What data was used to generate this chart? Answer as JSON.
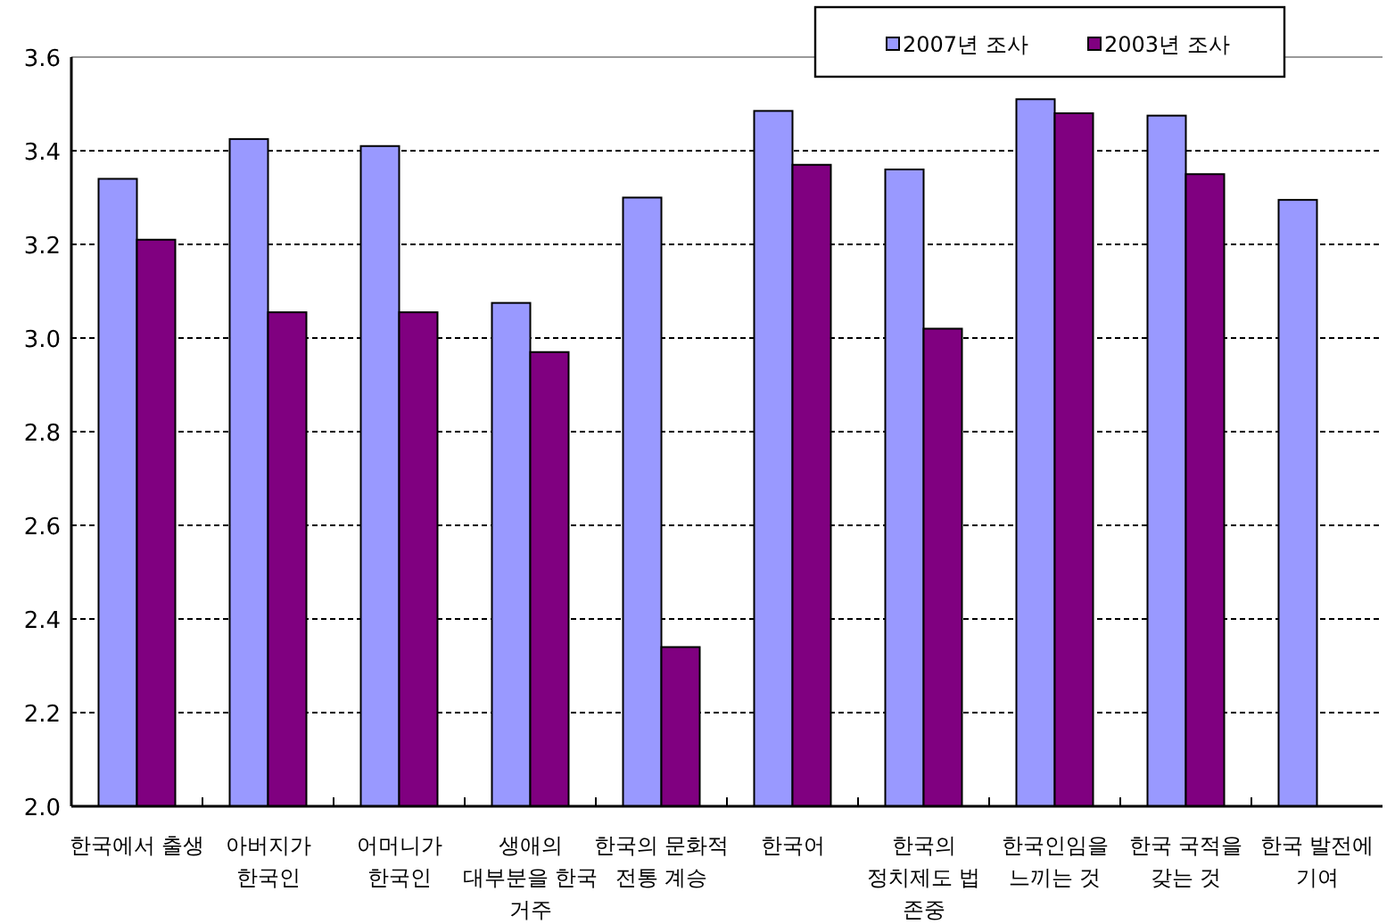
{
  "chart_data": {
    "type": "bar",
    "categories": [
      "한국에서 출생",
      "아버지가\n한국인",
      "어머니가\n한국인",
      "생애의\n대부분을 한국\n거주",
      "한국의 문화적\n전통 계승",
      "한국어",
      "한국의\n정치제도 법\n존중",
      "한국인임을\n느끼는 것",
      "한국 국적을\n갖는 것",
      "한국 발전에\n기여"
    ],
    "series": [
      {
        "name": "2007년 조사",
        "color": "#9999ff",
        "values": [
          3.34,
          3.425,
          3.41,
          3.075,
          3.3,
          3.485,
          3.36,
          3.51,
          3.475,
          3.295
        ]
      },
      {
        "name": "2003년 조사",
        "color": "#800080",
        "values": [
          3.21,
          3.055,
          3.055,
          2.97,
          2.34,
          3.37,
          3.02,
          3.48,
          3.35,
          null
        ]
      }
    ],
    "ylim": [
      2.0,
      3.6
    ],
    "yticks": [
      {
        "value": 2.0,
        "label": "2.0"
      },
      {
        "value": 2.2,
        "label": "2.2"
      },
      {
        "value": 2.4,
        "label": "2.4"
      },
      {
        "value": 2.6,
        "label": "2.6"
      },
      {
        "value": 2.8,
        "label": "2.8"
      },
      {
        "value": 3.0,
        "label": "3.0"
      },
      {
        "value": 3.2,
        "label": "3.2"
      },
      {
        "value": 3.4,
        "label": "3.4"
      },
      {
        "value": 3.6,
        "label": "3.6"
      }
    ],
    "grid": "y",
    "legend": "top right"
  }
}
